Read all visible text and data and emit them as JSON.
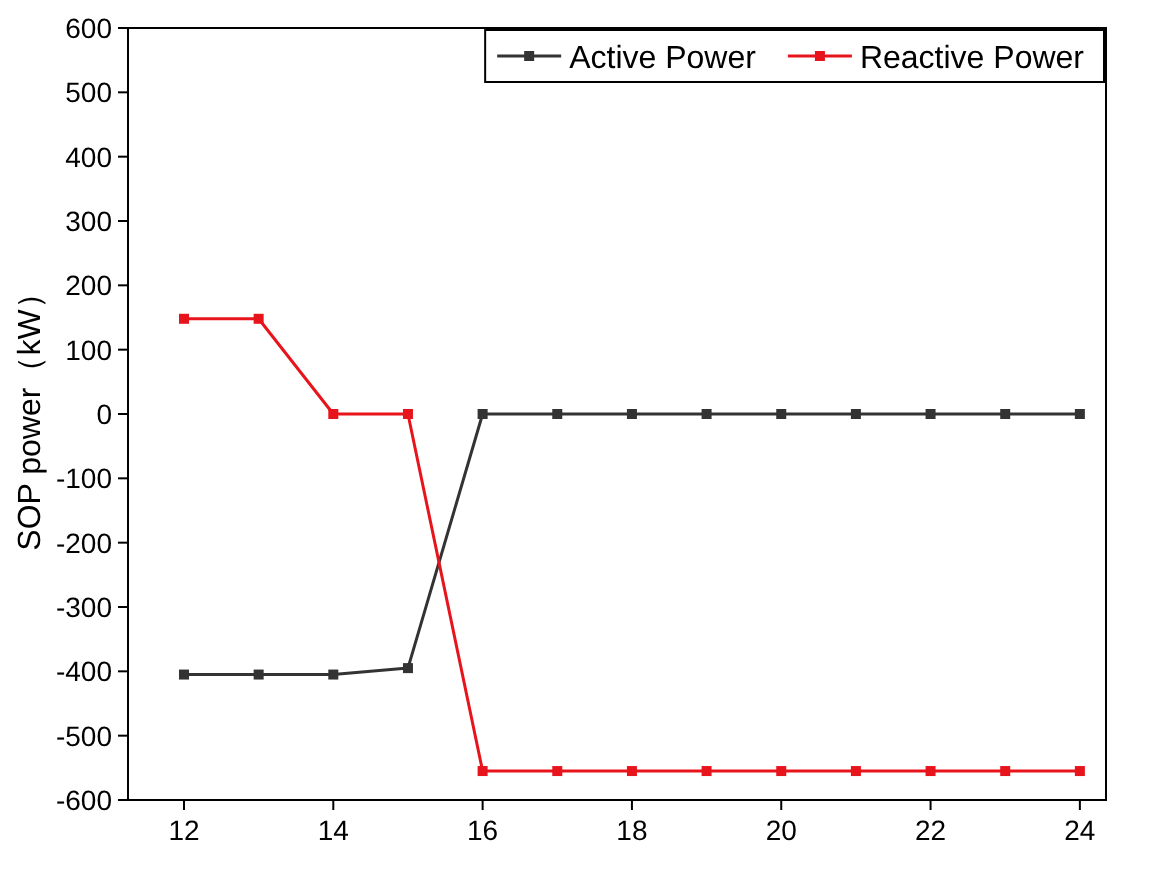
{
  "chart_data": {
    "type": "line",
    "ylabel": "SOP power（kW）",
    "x": [
      12,
      13,
      14,
      15,
      16,
      17,
      18,
      19,
      20,
      21,
      22,
      23,
      24
    ],
    "series": [
      {
        "name": "Active Power",
        "color": "#333333",
        "values": [
          -405,
          -405,
          -405,
          -395,
          0,
          0,
          0,
          0,
          0,
          0,
          0,
          0,
          0
        ]
      },
      {
        "name": "Reactive Power",
        "color": "#e8141c",
        "values": [
          148,
          148,
          0,
          0,
          -555,
          -555,
          -555,
          -555,
          -555,
          -555,
          -555,
          -555,
          -555
        ]
      }
    ],
    "xlim": [
      11.25,
      24.35
    ],
    "xticks": [
      12,
      14,
      16,
      18,
      20,
      22,
      24
    ],
    "ylim": [
      -600,
      600
    ],
    "yticks": [
      -600,
      -500,
      -400,
      -300,
      -200,
      -100,
      0,
      100,
      200,
      300,
      400,
      500,
      600
    ],
    "legend": "top right",
    "marker": "square",
    "line_style": "solid",
    "grid": false
  }
}
